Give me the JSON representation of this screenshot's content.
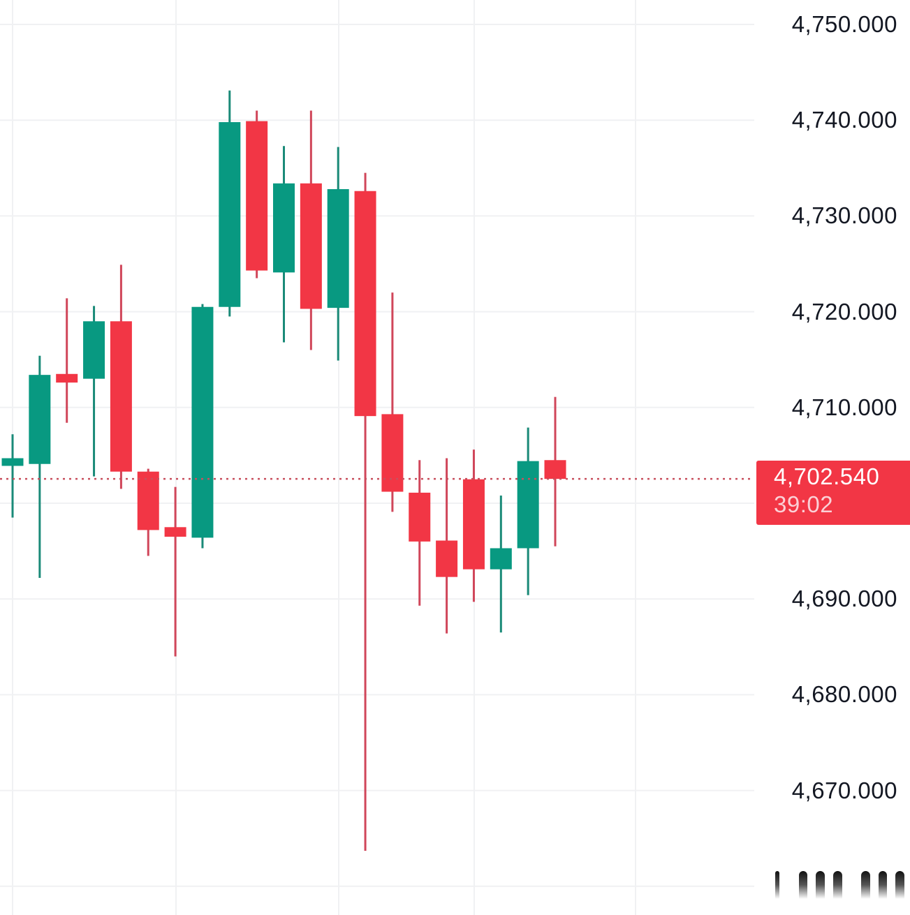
{
  "chart_data": {
    "type": "candlestick",
    "title": "",
    "xlabel": "",
    "ylabel": "",
    "ylim": [
      4662,
      4752.5
    ],
    "grid": true,
    "y_ticks": [
      4750,
      4740,
      4730,
      4720,
      4710,
      4700,
      4690,
      4680,
      4670,
      4660
    ],
    "y_tick_labels": [
      "4,750.000",
      "4,740.000",
      "4,730.000",
      "4,720.000",
      "4,710.000",
      "",
      "4,690.000",
      "4,680.000",
      "4,670.000",
      ""
    ],
    "up_color": "#089981",
    "down_color": "#f23645",
    "grid_color": "#f0f1f3",
    "candles": [
      {
        "o": 4703.9,
        "h": 4707.2,
        "l": 4698.5,
        "c": 4704.7
      },
      {
        "o": 4704.1,
        "h": 4715.4,
        "l": 4692.2,
        "c": 4713.4
      },
      {
        "o": 4713.5,
        "h": 4721.4,
        "l": 4708.4,
        "c": 4712.6
      },
      {
        "o": 4713.0,
        "h": 4720.6,
        "l": 4702.8,
        "c": 4719.0
      },
      {
        "o": 4719.0,
        "h": 4724.9,
        "l": 4701.5,
        "c": 4703.3
      },
      {
        "o": 4703.3,
        "h": 4703.6,
        "l": 4694.5,
        "c": 4697.2
      },
      {
        "o": 4697.5,
        "h": 4701.7,
        "l": 4684.0,
        "c": 4696.5
      },
      {
        "o": 4696.4,
        "h": 4720.8,
        "l": 4695.3,
        "c": 4720.5
      },
      {
        "o": 4720.5,
        "h": 4743.1,
        "l": 4719.5,
        "c": 4739.8
      },
      {
        "o": 4739.9,
        "h": 4741.0,
        "l": 4723.5,
        "c": 4724.3
      },
      {
        "o": 4724.1,
        "h": 4737.3,
        "l": 4716.8,
        "c": 4733.4
      },
      {
        "o": 4733.4,
        "h": 4741.0,
        "l": 4716.0,
        "c": 4720.3
      },
      {
        "o": 4720.4,
        "h": 4737.2,
        "l": 4714.9,
        "c": 4732.8
      },
      {
        "o": 4732.6,
        "h": 4734.5,
        "l": 4663.7,
        "c": 4709.1
      },
      {
        "o": 4709.3,
        "h": 4722.0,
        "l": 4699.1,
        "c": 4701.2
      },
      {
        "o": 4701.1,
        "h": 4704.5,
        "l": 4689.3,
        "c": 4696.0
      },
      {
        "o": 4696.1,
        "h": 4704.7,
        "l": 4686.4,
        "c": 4692.3
      },
      {
        "o": 4702.5,
        "h": 4705.6,
        "l": 4689.7,
        "c": 4693.1
      },
      {
        "o": 4693.1,
        "h": 4700.8,
        "l": 4686.5,
        "c": 4695.3
      },
      {
        "o": 4695.3,
        "h": 4707.9,
        "l": 4690.4,
        "c": 4704.4
      },
      {
        "o": 4704.5,
        "h": 4711.1,
        "l": 4695.5,
        "c": 4702.54
      }
    ],
    "last_price": 4702.54,
    "last_price_label": "4,702.540",
    "countdown": "39:02",
    "vertical_gridlines_x": [
      18,
      252,
      485,
      679,
      910
    ]
  },
  "price_badge": {
    "price": "4,702.540",
    "countdown": "39:02",
    "color": "#f23645"
  }
}
